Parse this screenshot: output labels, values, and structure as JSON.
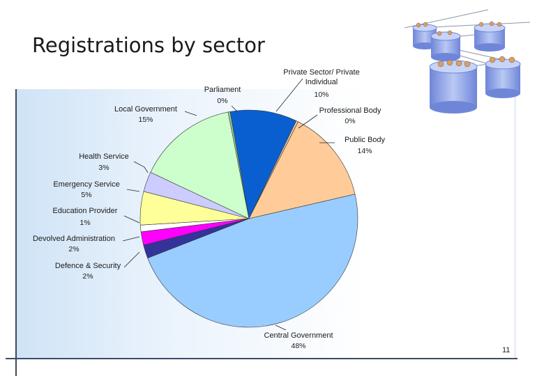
{
  "slide": {
    "title": "Registrations by sector",
    "page_number": "11"
  },
  "chart_data": {
    "type": "pie",
    "title": "",
    "slices": [
      {
        "label": "Private Sector/ Private Individual",
        "label_lines": [
          "Private Sector/ Private",
          "Individual"
        ],
        "value": 10,
        "value_label": "10%",
        "color": "#0a5fd0"
      },
      {
        "label": "Professional Body",
        "label_lines": [
          "Professional Body"
        ],
        "value": 0.3,
        "value_label": "0%",
        "color": "#f2c9a0"
      },
      {
        "label": "Public Body",
        "label_lines": [
          "Public Body"
        ],
        "value": 14,
        "value_label": "14%",
        "color": "#ffcc99"
      },
      {
        "label": "Central Government",
        "label_lines": [
          "Central Government"
        ],
        "value": 48,
        "value_label": "48%",
        "color": "#99ccff"
      },
      {
        "label": "Defence & Security",
        "label_lines": [
          "Defence & Security"
        ],
        "value": 2,
        "value_label": "2%",
        "color": "#333399"
      },
      {
        "label": "Devolved Administration",
        "label_lines": [
          "Devolved Administration"
        ],
        "value": 2,
        "value_label": "2%",
        "color": "#ff00ff"
      },
      {
        "label": "Education Provider",
        "label_lines": [
          "Education Provider"
        ],
        "value": 1,
        "value_label": "1%",
        "color": "#ffffff"
      },
      {
        "label": "Emergency Service",
        "label_lines": [
          "Emergency Service"
        ],
        "value": 5,
        "value_label": "5%",
        "color": "#ffff99"
      },
      {
        "label": "Health Service",
        "label_lines": [
          "Health Service"
        ],
        "value": 3,
        "value_label": "3%",
        "color": "#ccccff"
      },
      {
        "label": "Local Government",
        "label_lines": [
          "Local Government"
        ],
        "value": 15,
        "value_label": "15%",
        "color": "#ccffcc"
      },
      {
        "label": "Parliament",
        "label_lines": [
          "Parliament"
        ],
        "value": 0.3,
        "value_label": "0%",
        "color": "#99cc99"
      }
    ]
  }
}
